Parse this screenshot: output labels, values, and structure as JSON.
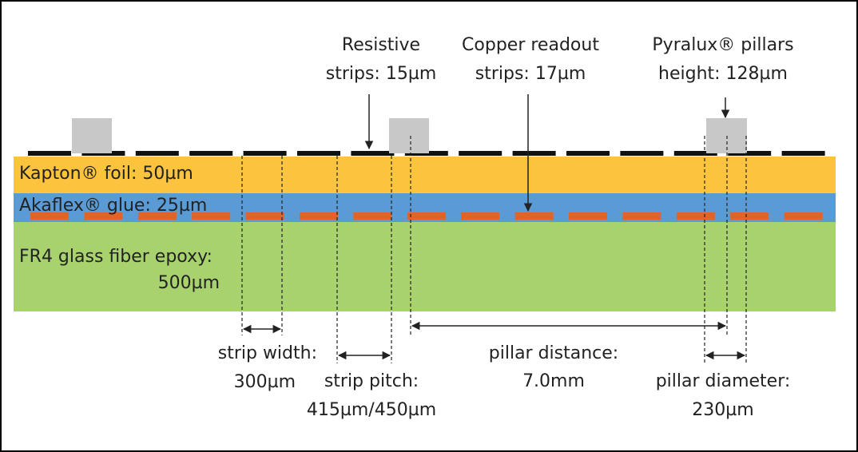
{
  "layers": {
    "kapton": "Kapton® foil:  50µm",
    "akaflex": "Akaflex® glue: 25µm",
    "fr4": [
      "FR4 glass fiber epoxy:",
      "500µm"
    ]
  },
  "callouts": {
    "resistive": [
      "Resistive",
      "strips: 15µm"
    ],
    "copper": [
      "Copper readout",
      "strips: 17µm"
    ],
    "pyralux": [
      "Pyralux® pillars",
      "height: 128µm"
    ]
  },
  "dimensions": {
    "strip_width": [
      "strip width:",
      "300µm"
    ],
    "strip_pitch": [
      "strip pitch:",
      "415µm/450µm"
    ],
    "pillar_distance": [
      "pillar distance:",
      "7.0mm"
    ],
    "pillar_diameter": [
      "pillar diameter:",
      "230µm"
    ]
  }
}
